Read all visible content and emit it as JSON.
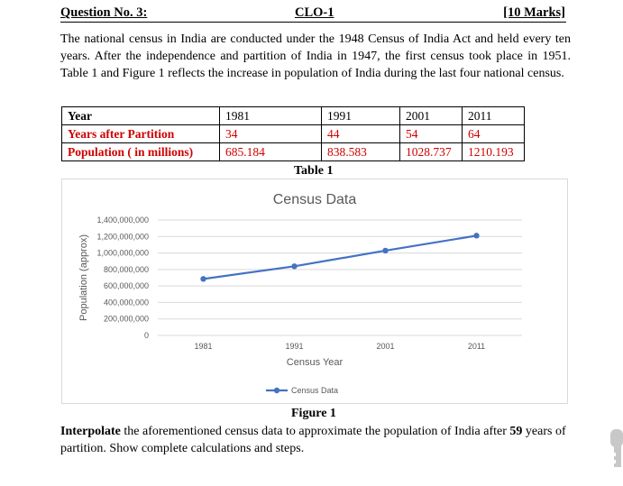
{
  "header": {
    "question": "Question No. 3:",
    "clo": "CLO-1",
    "marks": "[10 Marks]"
  },
  "intro": "The national census in India are conducted under the 1948 Census of India Act and held every ten years. After the independence and partition of India in 1947, the first census took place in 1951. Table 1 and Figure 1 reflects the increase in population of India during the last four national census.",
  "table": {
    "rows": [
      {
        "label": "Year",
        "cells": [
          "1981",
          "1991",
          "2001",
          "2011"
        ],
        "color": "black"
      },
      {
        "label": "Years after Partition",
        "cells": [
          "34",
          "44",
          "54",
          "64"
        ],
        "color": "#d00000"
      },
      {
        "label": "Population ( in millions)",
        "cells": [
          "685.184",
          "838.583",
          "1028.737",
          "1210.193"
        ],
        "color": "#d00000"
      }
    ],
    "caption": "Table 1"
  },
  "figure_caption": "Figure 1",
  "chart_data": {
    "type": "line",
    "title": "Census Data",
    "xlabel": "Census Year",
    "ylabel": "Population (approx)",
    "categories": [
      "1981",
      "1991",
      "2001",
      "2011"
    ],
    "series": [
      {
        "name": "Census Data",
        "values": [
          685184000,
          838583000,
          1028737000,
          1210193000
        ],
        "color": "#4472c4"
      }
    ],
    "y_ticks": [
      "0",
      "200,000,000",
      "400,000,000",
      "600,000,000",
      "800,000,000",
      "1,000,000,000",
      "1,200,000,000",
      "1,400,000,000"
    ],
    "ylim": [
      0,
      1400000000
    ],
    "grid": true,
    "legend": "bottom"
  },
  "question": {
    "bold_word": "Interpolate",
    "text_before_number": " the aforementioned census data to approximate the population of India after ",
    "number": "59",
    "text_after_number": " years of partition. Show complete calculations and steps."
  }
}
